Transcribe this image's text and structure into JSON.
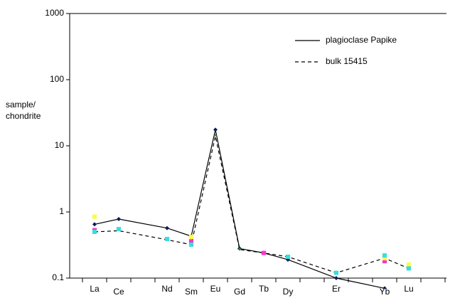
{
  "chart_data": {
    "type": "line",
    "ylabel": [
      "sample/",
      "chondrite"
    ],
    "categories": [
      "La",
      "Ce",
      "Nd",
      "Sm",
      "Eu",
      "Gd",
      "Tb",
      "Dy",
      "Er",
      "Yb",
      "Lu"
    ],
    "log_scale": true,
    "ylim": [
      0.1,
      1000
    ],
    "yticks": [
      0.1,
      1,
      10,
      100,
      1000
    ],
    "legend": "top-right",
    "series": [
      {
        "name": "plagioclase Papike",
        "color": "#000000",
        "line": "solid",
        "marker_color": "#0b1a5a",
        "values": [
          0.65,
          0.78,
          0.57,
          0.43,
          17.5,
          0.28,
          0.24,
          0.19,
          0.1,
          0.07,
          null
        ]
      },
      {
        "name": "bulk 15415",
        "color": "#000000",
        "line": "dashed",
        "marker_color": "#2f7f3f",
        "values": [
          0.5,
          0.52,
          0.38,
          0.32,
          14,
          0.27,
          0.24,
          0.21,
          0.12,
          0.2,
          0.14
        ]
      },
      {
        "color": "#ff33cc",
        "values": [
          0.53,
          null,
          null,
          0.36,
          null,
          null,
          0.24,
          null,
          null,
          0.18,
          null
        ]
      },
      {
        "color": "#ffff33",
        "values": [
          0.85,
          null,
          null,
          0.42,
          null,
          null,
          null,
          null,
          null,
          0.2,
          0.16
        ]
      },
      {
        "color": "#33e0e0",
        "values": [
          0.5,
          0.55,
          0.39,
          0.32,
          null,
          null,
          null,
          0.21,
          0.12,
          0.22,
          0.14
        ]
      }
    ]
  }
}
